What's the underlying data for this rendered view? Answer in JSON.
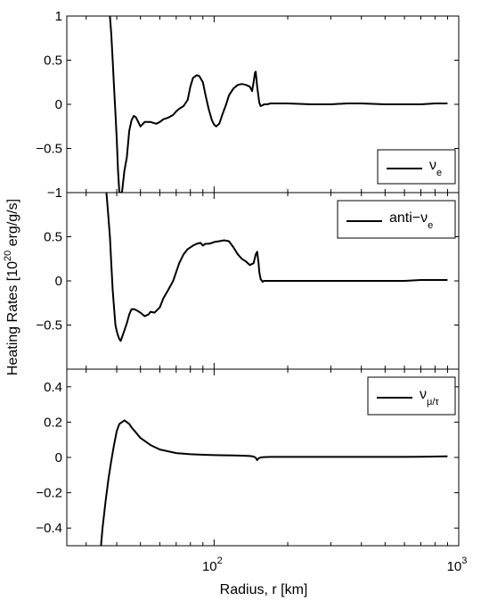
{
  "ylabel": "Heating Rates [10^20 erg/g/s]",
  "ylabel_base": "Heating Rates [10",
  "ylabel_exp": "20",
  "ylabel_tail": " erg/g/s]",
  "xlabel": "Radius, r [km]",
  "chart_data": [
    {
      "type": "line",
      "panel": "top",
      "xscale": "log",
      "xlim": [
        25,
        1000
      ],
      "ylim": [
        -1,
        1
      ],
      "yticks": [
        -1,
        -0.5,
        0,
        0.5,
        1
      ],
      "ytick_labels": [
        "−1",
        "−0.5",
        "0",
        "0.5",
        "1"
      ],
      "legend": {
        "base": "ν",
        "sub": "e",
        "placement": "bottom-right"
      },
      "series": [
        {
          "name": "νe",
          "x": [
            37.5,
            38,
            38.5,
            39,
            39.5,
            40,
            40.5,
            41,
            41.5,
            42,
            43,
            44,
            45,
            46,
            47,
            48,
            50,
            52,
            55,
            58,
            60,
            62,
            65,
            68,
            70,
            72,
            75,
            78,
            80,
            82,
            85,
            87,
            90,
            92,
            95,
            98,
            100,
            102,
            105,
            108,
            112,
            115,
            120,
            125,
            130,
            135,
            140,
            143,
            145,
            147,
            148,
            150,
            152,
            153,
            155,
            158,
            160,
            165,
            170,
            180,
            200,
            250,
            300,
            350,
            400,
            500,
            600,
            700,
            800,
            900
          ],
          "y": [
            1.0,
            0.8,
            0.5,
            0.2,
            -0.1,
            -0.4,
            -0.75,
            -1.0,
            -1.0,
            -1.0,
            -0.75,
            -0.6,
            -0.3,
            -0.18,
            -0.13,
            -0.15,
            -0.25,
            -0.2,
            -0.2,
            -0.22,
            -0.2,
            -0.17,
            -0.15,
            -0.12,
            -0.08,
            -0.05,
            -0.02,
            0.05,
            0.2,
            0.3,
            0.33,
            0.32,
            0.25,
            0.12,
            -0.05,
            -0.18,
            -0.23,
            -0.25,
            -0.22,
            -0.12,
            0.0,
            0.1,
            0.18,
            0.22,
            0.23,
            0.22,
            0.2,
            0.15,
            0.25,
            0.36,
            0.37,
            0.2,
            0.08,
            0.02,
            -0.02,
            -0.01,
            0.0,
            0.0,
            0.01,
            0.01,
            0.01,
            0.0,
            0.0,
            0.01,
            0.01,
            0.0,
            0.0,
            0.0,
            0.01,
            0.01
          ]
        }
      ]
    },
    {
      "type": "line",
      "panel": "middle",
      "xscale": "log",
      "xlim": [
        25,
        1000
      ],
      "ylim": [
        -1,
        1
      ],
      "yticks": [
        -0.5,
        0,
        0.5,
        1
      ],
      "ytick_labels": [
        "−0.5",
        "0",
        "0.5",
        ""
      ],
      "legend": {
        "base": "anti−ν",
        "sub": "e",
        "placement": "top-right"
      },
      "series": [
        {
          "name": "anti−νe",
          "x": [
            36.3,
            36.8,
            37.5,
            38,
            38.5,
            39,
            39.5,
            40,
            40.5,
            41,
            41.5,
            42,
            43,
            44,
            45,
            46,
            47,
            48,
            50,
            52,
            54,
            55,
            57,
            58,
            60,
            62,
            65,
            68,
            70,
            72,
            75,
            78,
            80,
            82,
            85,
            88,
            90,
            92,
            95,
            98,
            100,
            105,
            110,
            115,
            120,
            125,
            130,
            135,
            140,
            145,
            148,
            150,
            152,
            153,
            155,
            158,
            160,
            165,
            170,
            180,
            200,
            250,
            300,
            400,
            500,
            600,
            700,
            800,
            900
          ],
          "y": [
            1.0,
            0.8,
            0.5,
            0.2,
            -0.1,
            -0.3,
            -0.5,
            -0.57,
            -0.62,
            -0.66,
            -0.68,
            -0.64,
            -0.56,
            -0.48,
            -0.38,
            -0.32,
            -0.32,
            -0.33,
            -0.36,
            -0.4,
            -0.38,
            -0.35,
            -0.36,
            -0.34,
            -0.3,
            -0.2,
            -0.1,
            0.0,
            0.1,
            0.2,
            0.3,
            0.36,
            0.38,
            0.4,
            0.42,
            0.43,
            0.4,
            0.42,
            0.42,
            0.43,
            0.44,
            0.45,
            0.46,
            0.45,
            0.38,
            0.3,
            0.25,
            0.22,
            0.18,
            0.2,
            0.3,
            0.33,
            0.2,
            0.1,
            0.02,
            -0.01,
            0.0,
            0.0,
            0.0,
            0.0,
            0.0,
            0.0,
            0.0,
            0.0,
            0.0,
            0.0,
            0.01,
            0.01,
            0.01
          ]
        }
      ]
    },
    {
      "type": "line",
      "panel": "bottom",
      "xscale": "log",
      "xlim": [
        25,
        1000
      ],
      "ylim": [
        -0.5,
        0.5
      ],
      "yticks": [
        -0.4,
        -0.2,
        0,
        0.2,
        0.4
      ],
      "ytick_labels": [
        "−0.4",
        "−0.2",
        "0",
        "0.2",
        "0.4"
      ],
      "xticks": [
        100,
        1000
      ],
      "xtick_labels": [
        {
          "base": "10",
          "exp": "2"
        },
        {
          "base": "10",
          "exp": "3"
        }
      ],
      "legend": {
        "base": "ν",
        "sub": "μ/τ",
        "placement": "top-right"
      },
      "series": [
        {
          "name": "νμ/τ",
          "x": [
            34.5,
            35,
            36,
            37,
            38,
            39,
            40,
            41,
            42,
            43,
            44,
            45,
            46,
            48,
            50,
            55,
            60,
            70,
            80,
            90,
            100,
            110,
            120,
            130,
            140,
            145,
            148,
            150,
            152,
            155,
            160,
            170,
            200,
            300,
            400,
            500,
            600,
            700,
            800,
            900
          ],
          "y": [
            -0.5,
            -0.4,
            -0.25,
            -0.12,
            -0.02,
            0.07,
            0.15,
            0.19,
            0.2,
            0.21,
            0.2,
            0.19,
            0.17,
            0.14,
            0.11,
            0.07,
            0.045,
            0.025,
            0.018,
            0.015,
            0.013,
            0.012,
            0.011,
            0.01,
            0.008,
            0.005,
            -0.002,
            -0.015,
            -0.005,
            0.0,
            0.002,
            0.003,
            0.003,
            0.003,
            0.003,
            0.003,
            0.003,
            0.004,
            0.005,
            0.006
          ]
        }
      ]
    }
  ]
}
